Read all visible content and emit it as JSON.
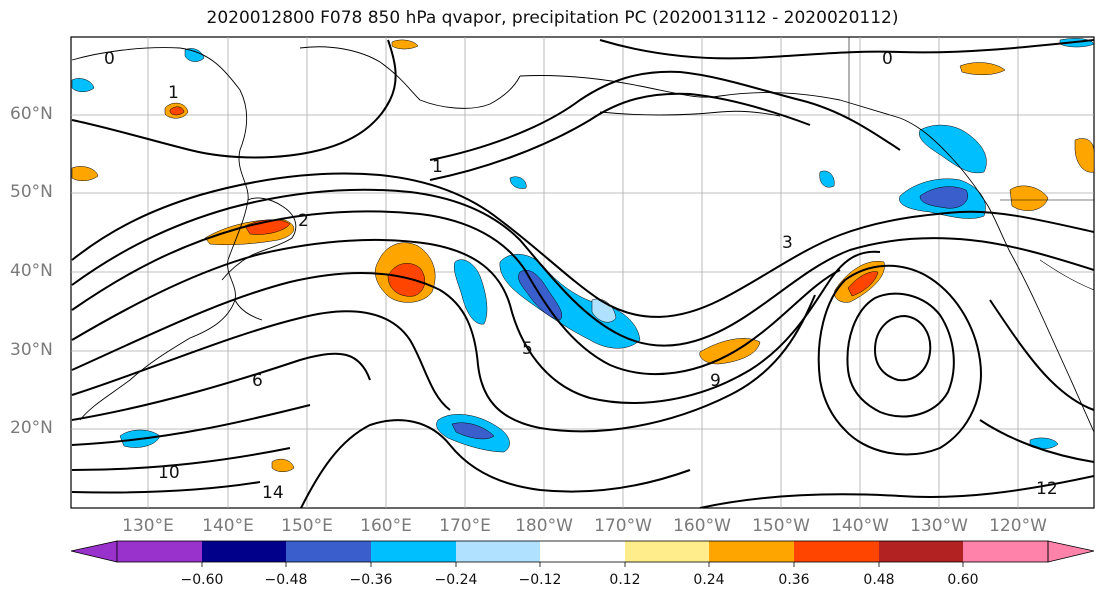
{
  "title": "2020012800 F078 850 hPa qvapor, precipitation PC (2020013112 - 2020020112)",
  "lat_labels": [
    "60°N",
    "50°N",
    "40°N",
    "30°N",
    "20°N"
  ],
  "lon_labels": [
    "130°E",
    "140°E",
    "150°E",
    "160°E",
    "170°E",
    "180°W",
    "170°W",
    "160°W",
    "150°W",
    "140°W",
    "130°W",
    "120°W"
  ],
  "contour_labels": [
    "0",
    "0",
    "1",
    "1",
    "2",
    "3",
    "5",
    "6",
    "9",
    "10",
    "12",
    "14"
  ],
  "colorbar": {
    "ticks": [
      "−0.60",
      "−0.48",
      "−0.36",
      "−0.24",
      "−0.12",
      "0.12",
      "0.24",
      "0.36",
      "0.48",
      "0.60"
    ],
    "colors": [
      "#9932cc",
      "#00008b",
      "#3a5fcd",
      "#00bfff",
      "#b0e2ff",
      "#ffffff",
      "#ffec8b",
      "#ffa500",
      "#ff4500",
      "#b22222",
      "#ff82ab"
    ]
  }
}
